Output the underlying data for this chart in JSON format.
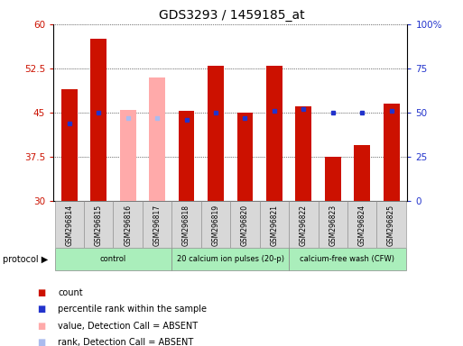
{
  "title": "GDS3293 / 1459185_at",
  "samples": [
    "GSM296814",
    "GSM296815",
    "GSM296816",
    "GSM296817",
    "GSM296818",
    "GSM296819",
    "GSM296820",
    "GSM296821",
    "GSM296822",
    "GSM296823",
    "GSM296824",
    "GSM296825"
  ],
  "count_values": [
    49.0,
    57.5,
    null,
    null,
    45.2,
    53.0,
    45.0,
    53.0,
    46.0,
    37.5,
    39.5,
    46.5
  ],
  "count_absent": [
    null,
    null,
    45.5,
    51.0,
    null,
    null,
    null,
    null,
    null,
    null,
    null,
    null
  ],
  "percentile_values_pct": [
    44.0,
    50.0,
    null,
    null,
    46.0,
    50.0,
    47.0,
    51.0,
    52.0,
    50.0,
    50.0,
    51.0
  ],
  "percentile_absent_pct": [
    null,
    null,
    47.0,
    47.0,
    null,
    null,
    null,
    null,
    null,
    null,
    null,
    null
  ],
  "ylim": [
    30,
    60
  ],
  "y2lim": [
    0,
    100
  ],
  "yticks": [
    30,
    37.5,
    45,
    52.5,
    60
  ],
  "ytick_labels": [
    "30",
    "37.5",
    "45",
    "52.5",
    "60"
  ],
  "y2ticks": [
    0,
    25,
    50,
    75,
    100
  ],
  "y2tick_labels": [
    "0",
    "25",
    "50",
    "75",
    "100%"
  ],
  "count_color": "#cc1100",
  "count_absent_color": "#ffaaaa",
  "percentile_color": "#2233cc",
  "percentile_absent_color": "#aabbee",
  "protocol_green": "#aaeebb",
  "sample_bg": "#d8d8d8",
  "plot_bg": "#ffffff",
  "title_fontsize": 10,
  "axis_label_color_left": "#cc1100",
  "axis_label_color_right": "#2233cc",
  "group_labels": [
    "control",
    "20 calcium ion pulses (20-p)",
    "calcium-free wash (CFW)"
  ],
  "group_starts": [
    0,
    4,
    8
  ],
  "group_ends": [
    4,
    8,
    12
  ],
  "legend_items": [
    {
      "color": "#cc1100",
      "label": "count"
    },
    {
      "color": "#2233cc",
      "label": "percentile rank within the sample"
    },
    {
      "color": "#ffaaaa",
      "label": "value, Detection Call = ABSENT"
    },
    {
      "color": "#aabbee",
      "label": "rank, Detection Call = ABSENT"
    }
  ]
}
